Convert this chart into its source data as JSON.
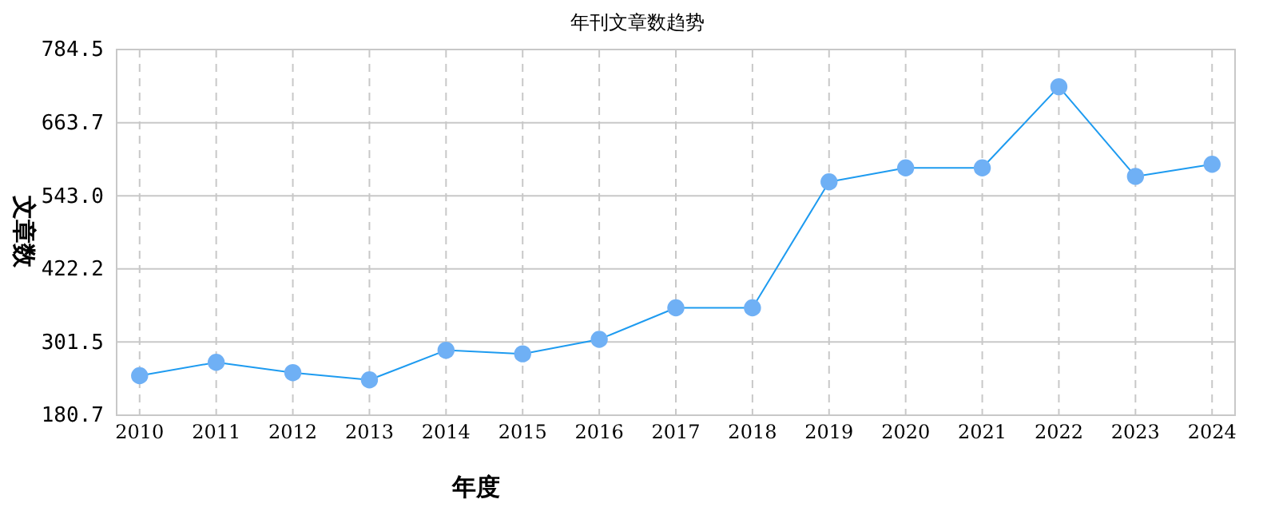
{
  "chart_data": {
    "type": "line",
    "title": "年刊文章数趋势",
    "xlabel": "年度",
    "ylabel": "文章数",
    "categories": [
      "2010",
      "2011",
      "2012",
      "2013",
      "2014",
      "2015",
      "2016",
      "2017",
      "2018",
      "2019",
      "2020",
      "2021",
      "2022",
      "2023",
      "2024"
    ],
    "series": [
      {
        "color": "#1e9bf0",
        "values": [
          246,
          268,
          251,
          239,
          288,
          282,
          306,
          358,
          358,
          566,
          589,
          589,
          723,
          575,
          595
        ]
      }
    ],
    "ylim": [
      180.7,
      784.5
    ],
    "yticks": [
      {
        "value": 180.7,
        "label": "180.7"
      },
      {
        "value": 301.5,
        "label": "301.5"
      },
      {
        "value": 422.2,
        "label": "422.2"
      },
      {
        "value": 543.0,
        "label": "543.0"
      },
      {
        "value": 663.7,
        "label": "663.7"
      },
      {
        "value": 784.5,
        "label": "784.5"
      }
    ],
    "grid": true,
    "marker": "circle",
    "line_style": "solid"
  }
}
